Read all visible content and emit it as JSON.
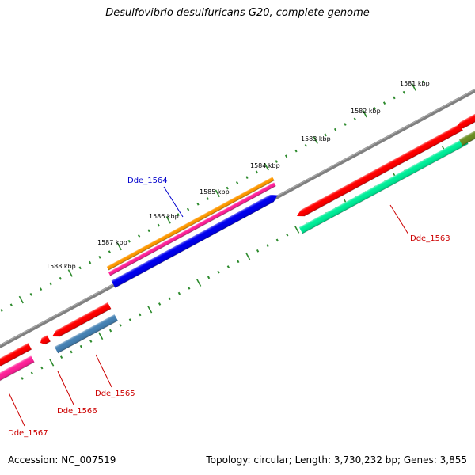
{
  "title": "Desulfovibrio desulfuricans G20, complete genome",
  "footer": {
    "accession": "Accession: NC_007519",
    "summary": "Topology: circular; Length: 3,730,232 bp; Genes: 3,855"
  },
  "colors": {
    "backbone": "#808080",
    "tick": "#2e8b2e",
    "forward_label": "#0000cc",
    "reverse_label": "#cc0000"
  },
  "scale_labels": [
    "1581 kbp",
    "1582 kbp",
    "1583 kbp",
    "1584 kbp",
    "1585 kbp",
    "1586 kbp",
    "1587 kbp",
    "1588 kbp"
  ],
  "genes": [
    {
      "id": "Dde_1563",
      "label": "Dde_1563",
      "strand": "reverse",
      "color": "#ff0000",
      "track_color": "#00ee99"
    },
    {
      "id": "Dde_1564",
      "label": "Dde_1564",
      "strand": "forward",
      "color": "#0000ee",
      "track_colors": [
        "#ff9900",
        "#ff2299"
      ]
    },
    {
      "id": "Dde_1565",
      "label": "Dde_1565",
      "strand": "reverse",
      "color": "#ff0000",
      "track_color": "#4682b4"
    },
    {
      "id": "Dde_1566",
      "label": "Dde_1566",
      "strand": "reverse",
      "color": "#ff0000"
    },
    {
      "id": "Dde_1567",
      "label": "Dde_1567",
      "strand": "reverse",
      "color": "#ff0000",
      "track_color": "#ff2299"
    }
  ]
}
